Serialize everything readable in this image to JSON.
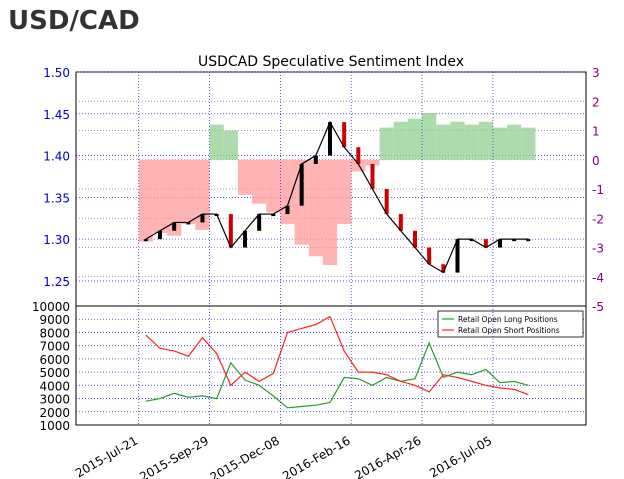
{
  "heading": "USD/CAD",
  "colors": {
    "price_left_axis": "#0000cc",
    "sentiment_right_axis": "#800080",
    "long_area": "#90d090",
    "short_area": "#ff9999",
    "long_line": "#2a9a2a",
    "short_line": "#ff2222",
    "grid": "#3333cc",
    "candle": "#000000",
    "candle_down": "#cc0000"
  },
  "chart_data": [
    {
      "type": "line",
      "title": "USDCAD Speculative Sentiment Index",
      "left_axis": {
        "ylim": [
          1.22,
          1.5
        ],
        "ticks": [
          "1.25",
          "1.30",
          "1.35",
          "1.40",
          "1.45",
          "1.50"
        ],
        "tick_values": [
          1.25,
          1.3,
          1.35,
          1.4,
          1.45,
          1.5
        ]
      },
      "right_axis": {
        "ylim": [
          -5,
          3
        ],
        "ticks": [
          "-5",
          "-4",
          "-3",
          "-2",
          "-1",
          "0",
          "1",
          "2",
          "3"
        ],
        "tick_values": [
          -5,
          -4,
          -3,
          -2,
          -1,
          0,
          1,
          2,
          3
        ]
      },
      "x_ticks": [
        "2015-Jul-21",
        "2015-Sep-29",
        "2015-Dec-08",
        "2016-Feb-16",
        "2016-Apr-26",
        "2016-Jul-05"
      ],
      "grid": true,
      "series": [
        {
          "kind": "candlestick_close",
          "x": [
            "2015-Jul-21",
            "2015-Aug-04",
            "2015-Aug-18",
            "2015-Sep-01",
            "2015-Sep-15",
            "2015-Sep-29",
            "2015-Oct-13",
            "2015-Oct-27",
            "2015-Nov-10",
            "2015-Nov-24",
            "2015-Dec-08",
            "2015-Dec-22",
            "2016-Jan-05",
            "2016-Jan-19",
            "2016-Feb-02",
            "2016-Feb-16",
            "2016-Mar-01",
            "2016-Mar-15",
            "2016-Mar-29",
            "2016-Apr-12",
            "2016-Apr-26",
            "2016-May-10",
            "2016-May-24",
            "2016-Jun-07",
            "2016-Jun-21",
            "2016-Jul-05",
            "2016-Jul-19",
            "2016-Aug-02"
          ],
          "values": [
            1.3,
            1.31,
            1.32,
            1.32,
            1.33,
            1.33,
            1.29,
            1.31,
            1.33,
            1.33,
            1.34,
            1.39,
            1.4,
            1.44,
            1.41,
            1.39,
            1.36,
            1.33,
            1.31,
            1.29,
            1.27,
            1.26,
            1.3,
            1.3,
            1.29,
            1.3,
            1.3,
            1.3
          ]
        },
        {
          "kind": "ssi_area",
          "x": [
            "2015-Jul-21",
            "2015-Aug-04",
            "2015-Aug-18",
            "2015-Sep-01",
            "2015-Sep-15",
            "2015-Sep-29",
            "2015-Oct-13",
            "2015-Oct-27",
            "2015-Nov-10",
            "2015-Nov-24",
            "2015-Dec-08",
            "2015-Dec-22",
            "2016-Jan-05",
            "2016-Jan-19",
            "2016-Feb-02",
            "2016-Feb-16",
            "2016-Mar-01",
            "2016-Mar-15",
            "2016-Mar-29",
            "2016-Apr-12",
            "2016-Apr-26",
            "2016-May-10",
            "2016-May-24",
            "2016-Jun-07",
            "2016-Jun-21",
            "2016-Jul-05",
            "2016-Jul-19",
            "2016-Aug-02"
          ],
          "values": [
            -2.8,
            -2.5,
            -2.6,
            -2.2,
            -2.4,
            1.2,
            1.0,
            -1.2,
            -1.5,
            -1.8,
            -2.2,
            -2.9,
            -3.3,
            -3.6,
            -2.2,
            -0.4,
            -0.2,
            1.1,
            1.3,
            1.4,
            1.6,
            1.2,
            1.3,
            1.2,
            1.3,
            1.1,
            1.2,
            1.1
          ]
        }
      ]
    },
    {
      "type": "line",
      "ylim": [
        1000,
        10000
      ],
      "ticks": [
        "1000",
        "2000",
        "3000",
        "4000",
        "5000",
        "6000",
        "7000",
        "8000",
        "9000",
        "10000"
      ],
      "tick_values": [
        1000,
        2000,
        3000,
        4000,
        5000,
        6000,
        7000,
        8000,
        9000,
        10000
      ],
      "legend_position": "top-right",
      "x": [
        "2015-Jul-21",
        "2015-Aug-04",
        "2015-Aug-18",
        "2015-Sep-01",
        "2015-Sep-15",
        "2015-Sep-29",
        "2015-Oct-13",
        "2015-Oct-27",
        "2015-Nov-10",
        "2015-Nov-24",
        "2015-Dec-08",
        "2015-Dec-22",
        "2016-Jan-05",
        "2016-Jan-19",
        "2016-Feb-02",
        "2016-Feb-16",
        "2016-Mar-01",
        "2016-Mar-15",
        "2016-Mar-29",
        "2016-Apr-12",
        "2016-Apr-26",
        "2016-May-10",
        "2016-May-24",
        "2016-Jun-07",
        "2016-Jun-21",
        "2016-Jul-05",
        "2016-Jul-19",
        "2016-Aug-02"
      ],
      "series": [
        {
          "name": "Retail Open Long Positions",
          "values": [
            2800,
            3000,
            3400,
            3100,
            3200,
            3000,
            5700,
            4400,
            4000,
            3200,
            2300,
            2400,
            2500,
            2700,
            4600,
            4500,
            4000,
            4600,
            4300,
            4500,
            7200,
            4600,
            5000,
            4800,
            5200,
            4200,
            4300,
            4000
          ]
        },
        {
          "name": "Retail Open Short Positions",
          "values": [
            7800,
            6800,
            6600,
            6200,
            7600,
            6400,
            4000,
            5000,
            4300,
            4900,
            8000,
            8300,
            8600,
            9200,
            6600,
            5000,
            5000,
            4800,
            4300,
            4000,
            3500,
            4800,
            4600,
            4300,
            4000,
            3800,
            3700,
            3300
          ]
        }
      ]
    }
  ]
}
